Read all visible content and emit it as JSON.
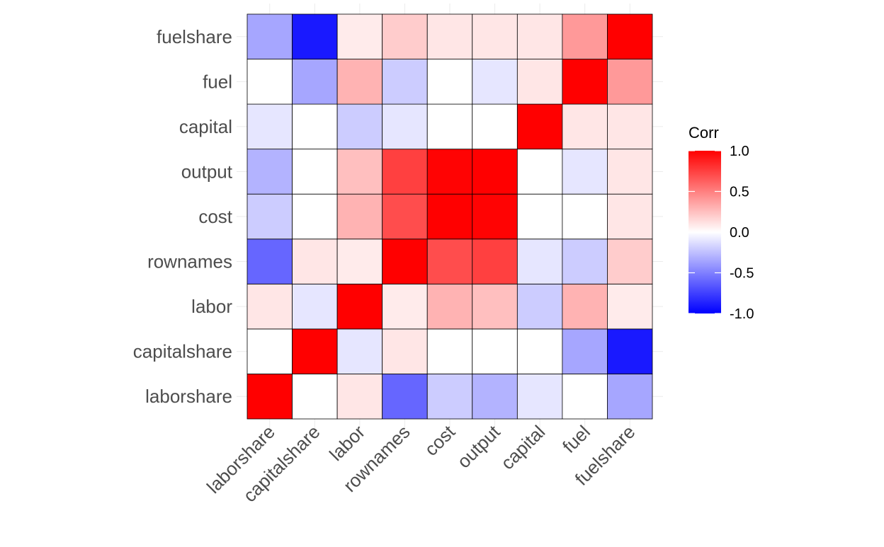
{
  "chart_data": {
    "type": "heatmap",
    "title": "",
    "xlabel": "",
    "ylabel": "",
    "variables_x": [
      "laborshare",
      "capitalshare",
      "labor",
      "rownames",
      "cost",
      "output",
      "capital",
      "fuel",
      "fuelshare"
    ],
    "variables_y_bottom_to_top": [
      "laborshare",
      "capitalshare",
      "labor",
      "rownames",
      "cost",
      "output",
      "capital",
      "fuel",
      "fuelshare"
    ],
    "matrix": [
      [
        1.0,
        0.0,
        0.1,
        -0.6,
        -0.2,
        -0.3,
        -0.1,
        0.0,
        -0.35
      ],
      [
        0.0,
        1.0,
        -0.1,
        0.1,
        0.0,
        0.0,
        0.0,
        -0.35,
        -0.9
      ],
      [
        0.1,
        -0.1,
        1.0,
        0.08,
        0.3,
        0.25,
        -0.2,
        0.3,
        0.08
      ],
      [
        -0.6,
        0.1,
        0.08,
        1.0,
        0.7,
        0.75,
        -0.1,
        -0.2,
        0.2
      ],
      [
        -0.2,
        0.0,
        0.3,
        0.7,
        1.0,
        0.99,
        0.0,
        0.0,
        0.1
      ],
      [
        -0.3,
        0.0,
        0.25,
        0.75,
        0.99,
        1.0,
        0.0,
        -0.1,
        0.1
      ],
      [
        -0.1,
        0.0,
        -0.2,
        -0.1,
        0.0,
        0.0,
        1.0,
        0.1,
        0.1
      ],
      [
        0.0,
        -0.35,
        0.3,
        -0.2,
        0.0,
        -0.1,
        0.1,
        1.0,
        0.4
      ],
      [
        -0.35,
        -0.9,
        0.08,
        0.2,
        0.1,
        0.1,
        0.1,
        0.4,
        1.0
      ]
    ],
    "legend": {
      "title": "Corr",
      "placement": "right",
      "ticks": [
        "1.0",
        "0.5",
        "0.0",
        "-0.5",
        "-1.0"
      ],
      "tick_values": [
        1.0,
        0.5,
        0.0,
        -0.5,
        -1.0
      ],
      "range": [
        -1,
        1
      ]
    },
    "colors": {
      "low": "#0000FF",
      "mid": "#FFFFFF",
      "high": "#FF0000"
    }
  }
}
